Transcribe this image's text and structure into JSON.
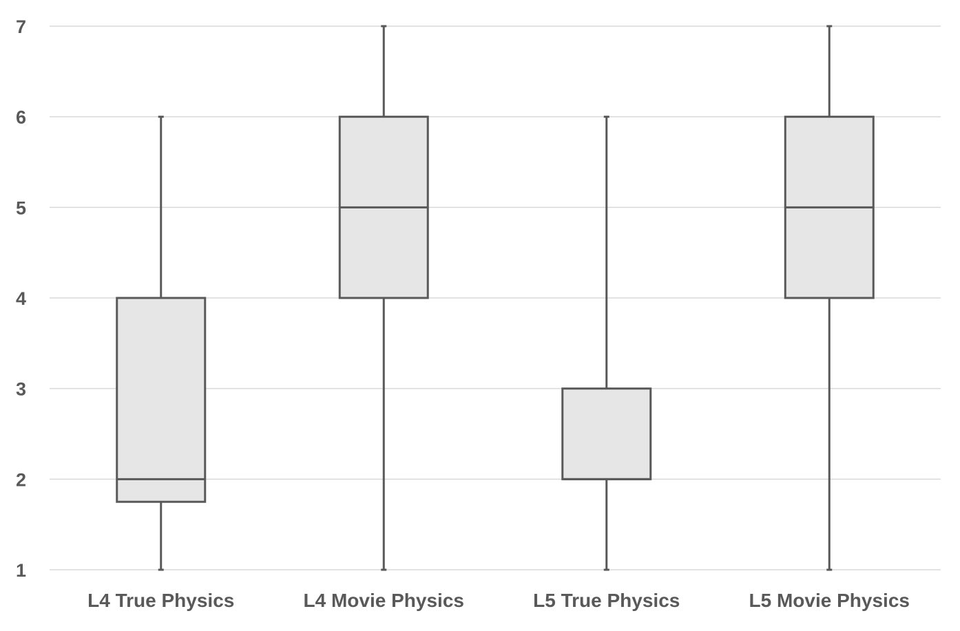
{
  "chart_data": {
    "type": "box",
    "title": "",
    "xlabel": "",
    "ylabel": "",
    "ylim": [
      1,
      7
    ],
    "y_ticks": [
      "1",
      "2",
      "3",
      "4",
      "5",
      "6",
      "7"
    ],
    "grid": true,
    "categories": [
      "L4 True Physics",
      "L4 Movie Physics",
      "L5 True Physics",
      "L5 Movie Physics"
    ],
    "boxes": [
      {
        "min": 1,
        "q1": 1.75,
        "median": 2,
        "q3": 4,
        "max": 6
      },
      {
        "min": 1,
        "q1": 4,
        "median": 5,
        "q3": 6,
        "max": 7
      },
      {
        "min": 1,
        "q1": 2,
        "median": 2,
        "q3": 3,
        "max": 6
      },
      {
        "min": 1,
        "q1": 4,
        "median": 5,
        "q3": 6,
        "max": 7
      }
    ],
    "colors": {
      "box_fill": "#e6e6e6",
      "stroke": "#595959",
      "grid": "#d9d9d9",
      "text": "#595959"
    }
  }
}
